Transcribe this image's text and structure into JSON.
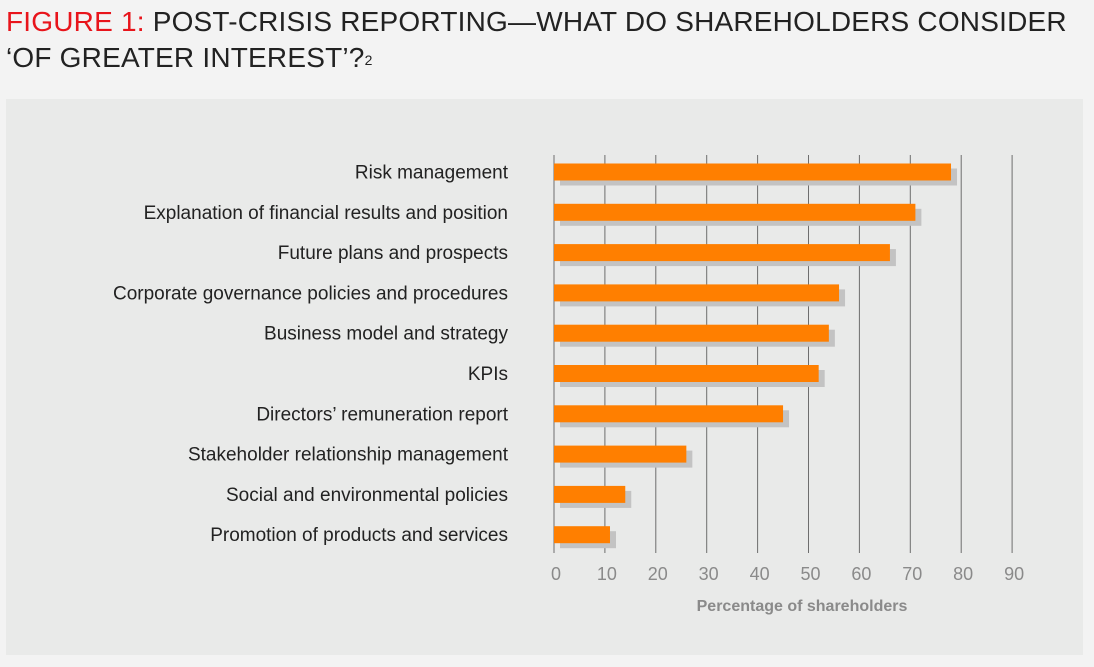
{
  "figure": {
    "prefix": "FIGURE 1:",
    "title": "POST-CRISIS REPORTING—WHAT DO SHAREHOLDERS CONSIDER",
    "title_line2": "‘OF GREATER INTEREST’?",
    "footnote_marker": "2"
  },
  "colors": {
    "bar": "#ff7f00",
    "shadow": "#c3c3c3",
    "grid": "#6e6e6e"
  },
  "chart_data": {
    "type": "bar",
    "orientation": "horizontal",
    "categories": [
      "Risk management",
      "Explanation of financial results and position",
      "Future plans and prospects",
      "Corporate governance policies and procedures",
      "Business model and strategy",
      "KPIs",
      "Directors’ remuneration report",
      "Stakeholder relationship management",
      "Social and environmental policies",
      "Promotion of products and services"
    ],
    "values": [
      78,
      71,
      66,
      56,
      54,
      52,
      45,
      26,
      14,
      11
    ],
    "xlabel": "Percentage of shareholders",
    "xlim": [
      0,
      90
    ],
    "xticks": [
      0,
      10,
      20,
      30,
      40,
      50,
      60,
      70,
      80,
      90
    ],
    "grid": true,
    "legend": "none"
  }
}
